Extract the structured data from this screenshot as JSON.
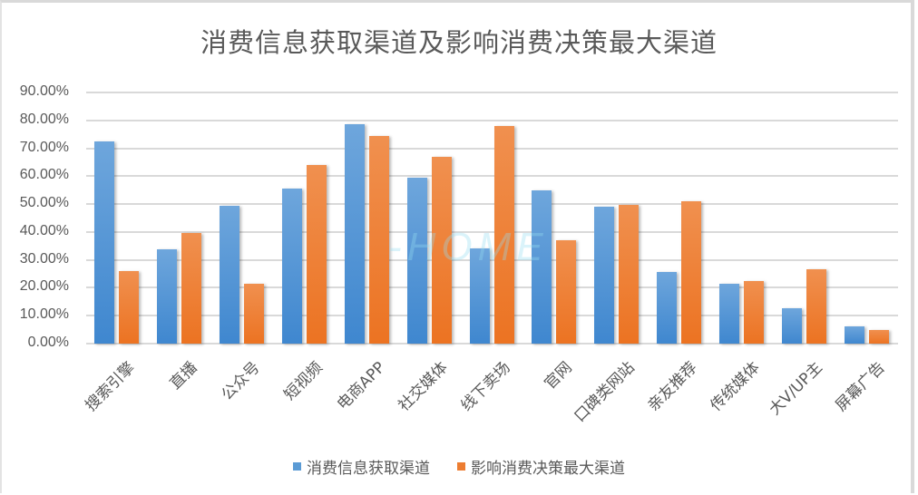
{
  "chart_data": {
    "type": "bar",
    "title": "消费信息获取渠道及影响消费决策最大渠道",
    "xlabel": "",
    "ylabel": "",
    "ylim": [
      0,
      90
    ],
    "y_tick_labels": [
      "0.00%",
      "10.00%",
      "20.00%",
      "30.00%",
      "40.00%",
      "50.00%",
      "60.00%",
      "70.00%",
      "80.00%",
      "90.00%"
    ],
    "grid": true,
    "legend_position": "bottom",
    "categories": [
      "搜索引擎",
      "直播",
      "公众号",
      "短视频",
      "电商APP",
      "社交媒体",
      "线下卖场",
      "官网",
      "口碑类网站",
      "亲友推荐",
      "传统媒体",
      "大V/UP主",
      "屏幕广告"
    ],
    "series": [
      {
        "name": "消费信息获取渠道",
        "color": "#5b9bd5",
        "values": [
          72.3,
          33.9,
          49.4,
          55.5,
          78.5,
          59.3,
          34.0,
          55.0,
          49.0,
          25.6,
          21.4,
          12.7,
          6.2
        ]
      },
      {
        "name": "影响消费决策最大渠道",
        "color": "#ed7d31",
        "values": [
          26.0,
          39.7,
          21.3,
          64.0,
          74.5,
          67.0,
          78.0,
          37.0,
          49.7,
          51.0,
          22.4,
          26.6,
          4.9
        ]
      }
    ]
  },
  "watermark": "-HOME"
}
